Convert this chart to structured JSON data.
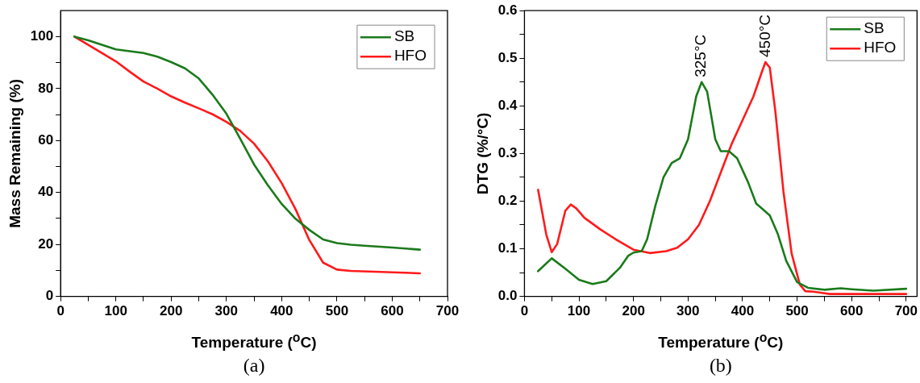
{
  "chart_data": [
    {
      "type": "line",
      "ylabel": "Mass Remaining (%)",
      "xlabel": "Temperature ($^{o}$C)",
      "annotations": [
        "(a)"
      ],
      "legend": "top right",
      "line_style": "solid",
      "marker": "none",
      "xlim": [
        0,
        700
      ],
      "xticks": [
        0,
        {
          "value": 50,
          "label": null
        },
        100,
        {
          "value": 150,
          "label": null
        },
        200,
        {
          "value": 250,
          "label": null
        },
        300,
        {
          "value": 350,
          "label": null
        },
        400,
        {
          "value": 450,
          "label": null
        },
        500,
        {
          "value": 550,
          "label": null
        },
        600,
        {
          "value": 650,
          "label": null
        },
        700
      ],
      "ylim": [
        0,
        110
      ],
      "yticks": [
        0,
        {
          "value": 10,
          "label": null
        },
        20,
        {
          "value": 30,
          "label": null
        },
        40,
        {
          "value": 50,
          "label": null
        },
        60,
        {
          "value": 70,
          "label": null
        },
        80,
        {
          "value": 90,
          "label": null
        },
        100
      ],
      "series": [
        {
          "name": "SB",
          "color": "#1a7a1a",
          "x": [
            25,
            50,
            100,
            150,
            175,
            200,
            225,
            250,
            275,
            300,
            325,
            350,
            375,
            400,
            425,
            450,
            475,
            500,
            525,
            550,
            600,
            650
          ],
          "values": [
            100,
            98.6,
            95.1,
            93.7,
            92.3,
            90.2,
            87.8,
            83.9,
            77.6,
            70.3,
            60.7,
            50.8,
            42.8,
            35.6,
            29.9,
            25.6,
            21.9,
            20.5,
            19.9,
            19.5,
            18.8,
            18
          ]
        },
        {
          "name": "HFO",
          "color": "#ff1a1a",
          "x": [
            25,
            100,
            125,
            150,
            175,
            200,
            225,
            250,
            275,
            300,
            325,
            350,
            375,
            400,
            425,
            450,
            475,
            500,
            525,
            650
          ],
          "values": [
            100,
            90.5,
            86.5,
            82.7,
            80,
            77,
            74.6,
            72.4,
            70.1,
            67.2,
            63.7,
            58.8,
            52,
            43.6,
            33.6,
            21.7,
            13,
            10.3,
            9.8,
            8.9
          ]
        }
      ]
    },
    {
      "type": "line",
      "ylabel": "DTG (%/°C)",
      "xlabel": "Temperature ($^{o}$C)",
      "legend": "top right",
      "line_style": "solid",
      "marker": "none",
      "annotations": [
        {
          "text": "325°C",
          "x": 325,
          "y": 0.45
        },
        {
          "text": "450°C",
          "x": 442,
          "y": 0.492
        },
        "(b)"
      ],
      "xlim": [
        0,
        720
      ],
      "xticks": [
        0,
        {
          "value": 50,
          "label": null
        },
        100,
        {
          "value": 150,
          "label": null
        },
        200,
        {
          "value": 250,
          "label": null
        },
        300,
        {
          "value": 350,
          "label": null
        },
        400,
        {
          "value": 450,
          "label": null
        },
        500,
        {
          "value": 550,
          "label": null
        },
        600,
        {
          "value": 650,
          "label": null
        },
        700
      ],
      "ylim": [
        0,
        0.6
      ],
      "yticks": [
        "0.0",
        {
          "value": 0.05,
          "label": null
        },
        0.1,
        {
          "value": 0.15,
          "label": null
        },
        0.2,
        {
          "value": 0.25,
          "label": null
        },
        0.3,
        {
          "value": 0.35,
          "label": null
        },
        0.4,
        {
          "value": 0.45,
          "label": null
        },
        0.5,
        {
          "value": 0.55,
          "label": null
        },
        0.6
      ],
      "series": [
        {
          "name": "SB",
          "color": "#1a7a1a",
          "x": [
            25,
            50,
            75,
            100,
            125,
            150,
            175,
            190,
            200,
            215,
            225,
            240,
            255,
            270,
            285,
            300,
            315,
            325,
            335,
            350,
            360,
            375,
            390,
            410,
            425,
            440,
            450,
            465,
            480,
            500,
            520,
            550,
            580,
            600,
            640,
            700
          ],
          "values": [
            0.053,
            0.08,
            0.058,
            0.035,
            0.026,
            0.032,
            0.06,
            0.085,
            0.092,
            0.095,
            0.12,
            0.19,
            0.25,
            0.28,
            0.29,
            0.33,
            0.42,
            0.45,
            0.43,
            0.33,
            0.305,
            0.305,
            0.29,
            0.24,
            0.195,
            0.18,
            0.17,
            0.13,
            0.075,
            0.03,
            0.018,
            0.014,
            0.017,
            0.015,
            0.012,
            0.016
          ]
        },
        {
          "name": "HFO",
          "color": "#ff1a1a",
          "x": [
            25,
            40,
            50,
            60,
            75,
            85,
            95,
            110,
            140,
            170,
            200,
            230,
            260,
            280,
            300,
            320,
            340,
            360,
            380,
            400,
            420,
            435,
            442,
            450,
            460,
            475,
            490,
            505,
            515,
            530,
            560,
            700
          ],
          "values": [
            0.224,
            0.13,
            0.093,
            0.11,
            0.18,
            0.193,
            0.185,
            0.165,
            0.14,
            0.118,
            0.098,
            0.091,
            0.095,
            0.102,
            0.12,
            0.15,
            0.2,
            0.26,
            0.32,
            0.37,
            0.42,
            0.47,
            0.492,
            0.48,
            0.39,
            0.22,
            0.09,
            0.025,
            0.011,
            0.01,
            0.005,
            0.005
          ]
        }
      ]
    }
  ]
}
